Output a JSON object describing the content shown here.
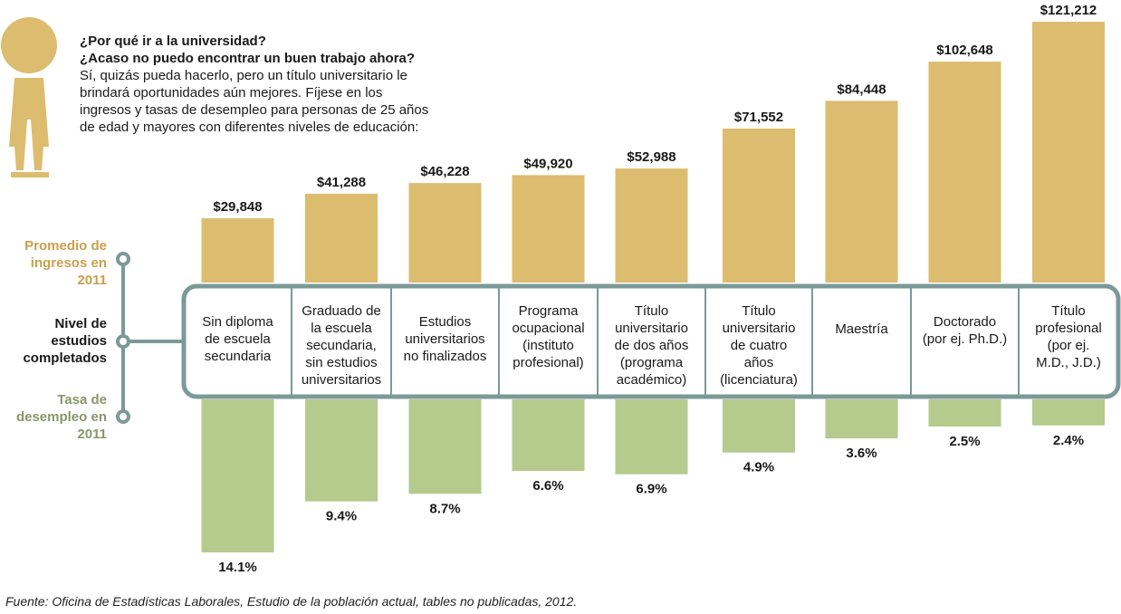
{
  "intro": {
    "question1": "¿Por qué ir a la universidad?",
    "question2": "¿Acaso no puedo encontrar un buen trabajo ahora?",
    "body": "Sí, quizás pueda hacerlo, pero un título universitario le brindará oportunidades aún mejores. Fíjese en los ingresos y tasas de desempleo para personas de 25 años de edad y mayores con diferentes niveles de educación:"
  },
  "row_labels": {
    "earnings": "Promedio de ingresos en 2011",
    "education": "Nivel de estudios completados",
    "unemployment": "Tasa de desempleo en 2011"
  },
  "source": "Fuente: Oficina de Estadísticas Laborales, Estudio de la población actual, tables no publicadas, 2012.",
  "colors": {
    "earnings_bar": "#dcbc6e",
    "unemployment_bar": "#b5ca8d",
    "frame": "#7b9a97",
    "earnings_label": "#c9a04e",
    "unemployment_label": "#8a9668"
  },
  "chart_data": {
    "type": "bar",
    "categories": [
      "Sin diploma de escuela secundaria",
      "Graduado de la escuela secundaria, sin estudios universitarios",
      "Estudios universitarios no finalizados",
      "Programa ocupacional (instituto profesional)",
      "Título universitario de dos años (programa académico)",
      "Título universitario de cuatro años (licenciatura)",
      "Maestría",
      "Doctorado (por ej. Ph.D.)",
      "Título profesional (por ej. M.D., J.D.)"
    ],
    "category_lines": [
      [
        "Sin diploma",
        "de escuela",
        "secundaria"
      ],
      [
        "Graduado de",
        "la escuela",
        "secundaria,",
        "sin estudios",
        "universitarios"
      ],
      [
        "Estudios",
        "universitarios",
        "no finalizados"
      ],
      [
        "Programa",
        "ocupacional",
        "(instituto",
        "profesional)"
      ],
      [
        "Título",
        "universitario",
        "de dos años",
        "(programa",
        "académico)"
      ],
      [
        "Título",
        "universitario",
        "de cuatro",
        "años",
        "(licenciatura)"
      ],
      [
        "Maestría"
      ],
      [
        "Doctorado",
        "(por ej. Ph.D.)"
      ],
      [
        "Título",
        "profesional",
        "(por ej.",
        "M.D., J.D.)"
      ]
    ],
    "series": [
      {
        "name": "Promedio de ingresos en 2011",
        "values": [
          29848,
          41288,
          46228,
          49920,
          52988,
          71552,
          84448,
          102648,
          121212
        ],
        "labels": [
          "$29,848",
          "$41,288",
          "$46,228",
          "$49,920",
          "$52,988",
          "$71,552",
          "$84,448",
          "$102,648",
          "$121,212"
        ]
      },
      {
        "name": "Tasa de desempleo en 2011",
        "values": [
          14.1,
          9.4,
          8.7,
          6.6,
          6.9,
          4.9,
          3.6,
          2.5,
          2.4
        ],
        "labels": [
          "14.1%",
          "9.4%",
          "8.7%",
          "6.6%",
          "6.9%",
          "4.9%",
          "3.6%",
          "2.5%",
          "2.4%"
        ]
      }
    ]
  }
}
